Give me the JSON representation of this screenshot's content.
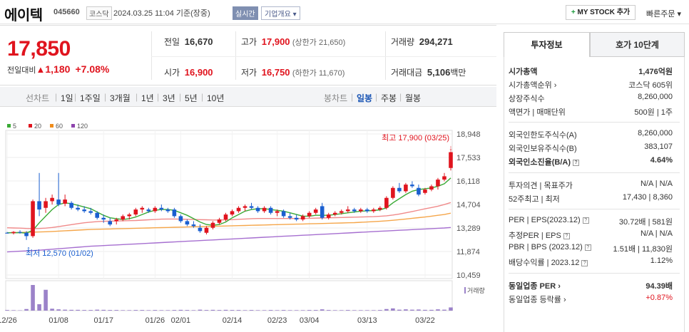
{
  "header": {
    "name": "에이텍",
    "code": "045660",
    "market": "코스닥",
    "date": "2024.03.25 11:04 기준(장중)",
    "realtime": "실시간",
    "company_overview": "기업개요 ▾",
    "mystock": "MY STOCK 추가",
    "mystock_plus": "+",
    "quick_order": "빠른주문 ▾"
  },
  "price": {
    "current": "17,850",
    "change_label": "전일대비",
    "change_arrow": "▲",
    "change_value": "1,180",
    "change_rate": "+7.08%"
  },
  "stats": {
    "prev_label": "전일",
    "prev": "16,670",
    "high_label": "고가",
    "high": "17,900",
    "upper_limit": "(상한가 21,650)",
    "volume_label": "거래량",
    "volume": "294,271",
    "open_label": "시가",
    "open": "16,900",
    "low_label": "저가",
    "low": "16,750",
    "lower_limit": "(하한가 11,670)",
    "amount_label": "거래대금",
    "amount": "5,106",
    "amount_unit": "백만"
  },
  "period_bar": {
    "line_label": "선차트",
    "periods": [
      "1일",
      "1주일",
      "3개월",
      "1년",
      "3년",
      "5년",
      "10년"
    ],
    "candle_label": "봉차트",
    "candles": [
      "일봉",
      "주봉",
      "월봉"
    ],
    "selected": "일봉",
    "separator": "|"
  },
  "chart_data": {
    "type": "candlestick",
    "legend": [
      "5",
      "20",
      "60",
      "120"
    ],
    "legend_colors": [
      "#3aaa35",
      "#e0141e",
      "#f08c1a",
      "#8e44ad"
    ],
    "y_ticks": [
      "18,948",
      "17,533",
      "16,118",
      "14,704",
      "13,289",
      "11,874",
      "10,459"
    ],
    "y_range": [
      10459,
      18948
    ],
    "x_labels": [
      "12/26",
      "01/08",
      "01/17",
      "01/26",
      "02/01",
      "02/14",
      "02/23",
      "03/04",
      "03/13",
      "03/22"
    ],
    "max_label": "최고 17,900 (03/25)",
    "min_label": "최저 12,570 (01/02)",
    "volume_label": "거래량",
    "candles": [
      [
        13000,
        13050,
        12950,
        12990
      ],
      [
        12980,
        13100,
        12900,
        13050
      ],
      [
        13050,
        13150,
        12950,
        13000
      ],
      [
        13000,
        13100,
        12570,
        12800
      ],
      [
        12800,
        15000,
        12700,
        14900
      ],
      [
        14900,
        16600,
        14000,
        14400
      ],
      [
        14500,
        15100,
        14200,
        14900
      ],
      [
        14900,
        15300,
        14700,
        15100
      ],
      [
        15000,
        16600,
        14600,
        14700
      ],
      [
        14750,
        15300,
        14600,
        15000
      ],
      [
        14800,
        14900,
        14400,
        14500
      ],
      [
        14500,
        14700,
        14300,
        14400
      ],
      [
        14400,
        14600,
        14200,
        14300
      ],
      [
        14300,
        14500,
        14100,
        14200
      ],
      [
        14200,
        14300,
        13800,
        13900
      ],
      [
        13900,
        14100,
        13600,
        13800
      ],
      [
        13700,
        13900,
        13400,
        13500
      ],
      [
        13700,
        13900,
        13500,
        13800
      ],
      [
        13800,
        14100,
        13700,
        14000
      ],
      [
        14000,
        14200,
        13800,
        14100
      ],
      [
        14100,
        14500,
        14000,
        14400
      ],
      [
        14400,
        14600,
        14200,
        14500
      ],
      [
        14400,
        14500,
        14200,
        14300
      ],
      [
        14300,
        14600,
        14200,
        14500
      ],
      [
        14500,
        14700,
        14300,
        14400
      ],
      [
        14400,
        14500,
        14200,
        14300
      ],
      [
        14400,
        14500,
        13900,
        14000
      ],
      [
        14000,
        14100,
        13600,
        13700
      ],
      [
        13700,
        13800,
        13400,
        13500
      ],
      [
        13500,
        13700,
        13300,
        13400
      ],
      [
        13300,
        13500,
        13000,
        13100
      ],
      [
        13000,
        13400,
        12900,
        13300
      ],
      [
        13300,
        13700,
        13200,
        13600
      ],
      [
        13600,
        13900,
        13500,
        13800
      ],
      [
        13800,
        14200,
        13700,
        14100
      ],
      [
        14100,
        14400,
        14000,
        14300
      ],
      [
        14300,
        14600,
        14200,
        14500
      ],
      [
        14500,
        14700,
        14300,
        14600
      ],
      [
        14600,
        14800,
        14400,
        14500
      ],
      [
        14500,
        14600,
        14200,
        14300
      ],
      [
        14300,
        14600,
        14200,
        14500
      ],
      [
        14500,
        14600,
        14100,
        14200
      ],
      [
        14200,
        14400,
        14000,
        14300
      ],
      [
        14300,
        14400,
        13900,
        14000
      ],
      [
        14000,
        14200,
        13800,
        13900
      ],
      [
        13900,
        14100,
        13700,
        13800
      ],
      [
        13800,
        14100,
        13700,
        14000
      ],
      [
        14000,
        14300,
        13900,
        14200
      ],
      [
        14200,
        14500,
        14100,
        14400
      ],
      [
        14600,
        14800,
        13800,
        13900
      ],
      [
        13900,
        14200,
        13800,
        14100
      ],
      [
        14100,
        14300,
        14000,
        14200
      ],
      [
        14200,
        14400,
        14100,
        14300
      ],
      [
        14300,
        14600,
        14200,
        14400
      ],
      [
        14400,
        14500,
        14200,
        14300
      ],
      [
        14300,
        14500,
        14200,
        14400
      ],
      [
        14400,
        14500,
        14200,
        14300
      ],
      [
        14300,
        14500,
        14200,
        14400
      ],
      [
        14400,
        14600,
        14300,
        14500
      ],
      [
        14500,
        15200,
        14400,
        15100
      ],
      [
        15100,
        15800,
        15000,
        15700
      ],
      [
        15700,
        16000,
        15400,
        15500
      ],
      [
        15500,
        16000,
        15400,
        15900
      ],
      [
        15900,
        16100,
        15700,
        15800
      ],
      [
        15700,
        15900,
        15200,
        15300
      ],
      [
        15400,
        15700,
        15300,
        15600
      ],
      [
        15600,
        15900,
        15500,
        15800
      ],
      [
        15800,
        16300,
        15600,
        16200
      ],
      [
        16200,
        16600,
        16100,
        16400
      ],
      [
        16900,
        17900,
        16750,
        17850
      ]
    ],
    "ma5": [
      13000,
      13000,
      13010,
      12980,
      13150,
      13600,
      14000,
      14400,
      14700,
      14800,
      14750,
      14650,
      14550,
      14450,
      14250,
      14050,
      13900,
      13850,
      13800,
      13850,
      13950,
      14100,
      14250,
      14350,
      14400,
      14400,
      14350,
      14200,
      14050,
      13850,
      13650,
      13500,
      13450,
      13500,
      13650,
      13900,
      14100,
      14300,
      14400,
      14450,
      14450,
      14400,
      14350,
      14300,
      14200,
      14100,
      14000,
      14000,
      14050,
      14050,
      14050,
      14100,
      14150,
      14200,
      14250,
      14300,
      14320,
      14340,
      14380,
      14500,
      14800,
      15050,
      15300,
      15500,
      15600,
      15650,
      15700,
      15800,
      15950,
      16300
    ],
    "ma20": [
      13300,
      13290,
      13280,
      13260,
      13250,
      13260,
      13280,
      13320,
      13370,
      13430,
      13490,
      13550,
      13600,
      13640,
      13670,
      13690,
      13700,
      13710,
      13720,
      13730,
      13740,
      13760,
      13780,
      13800,
      13820,
      13830,
      13830,
      13820,
      13810,
      13800,
      13790,
      13780,
      13770,
      13770,
      13780,
      13790,
      13810,
      13830,
      13850,
      13860,
      13860,
      13860,
      13860,
      13860,
      13860,
      13860,
      13860,
      13870,
      13880,
      13890,
      13900,
      13910,
      13920,
      13930,
      13940,
      13950,
      13960,
      13970,
      13990,
      14020,
      14070,
      14130,
      14200,
      14280,
      14360,
      14440,
      14520,
      14600,
      14700,
      14820
    ],
    "ma60": [
      13000,
      13010,
      13020,
      13030,
      13040,
      13050,
      13060,
      13080,
      13100,
      13120,
      13140,
      13160,
      13180,
      13200,
      13210,
      13220,
      13230,
      13240,
      13250,
      13260,
      13270,
      13280,
      13290,
      13300,
      13310,
      13320,
      13330,
      13340,
      13350,
      13360,
      13370,
      13380,
      13390,
      13400,
      13410,
      13420,
      13430,
      13440,
      13450,
      13460,
      13470,
      13480,
      13490,
      13500,
      13510,
      13520,
      13530,
      13540,
      13550,
      13560,
      13570,
      13580,
      13590,
      13600,
      13610,
      13630,
      13650,
      13670,
      13690,
      13720,
      13750,
      13790,
      13830,
      13870,
      13910,
      13950,
      14000,
      14050,
      14100,
      14180
    ],
    "ma120": [
      11850,
      11870,
      11890,
      11910,
      11930,
      11950,
      11980,
      12010,
      12040,
      12070,
      12100,
      12130,
      12160,
      12190,
      12210,
      12230,
      12250,
      12270,
      12290,
      12310,
      12330,
      12350,
      12370,
      12390,
      12410,
      12430,
      12450,
      12470,
      12490,
      12510,
      12530,
      12550,
      12570,
      12590,
      12610,
      12630,
      12650,
      12670,
      12690,
      12710,
      12730,
      12750,
      12770,
      12790,
      12810,
      12830,
      12850,
      12870,
      12890,
      12910,
      12930,
      12950,
      12970,
      12990,
      13010,
      13030,
      13050,
      13070,
      13090,
      13110,
      13130,
      13150,
      13170,
      13190,
      13210,
      13230,
      13250,
      13270,
      13290,
      13320
    ],
    "volume": [
      4,
      3,
      2,
      10,
      160,
      40,
      130,
      12,
      8,
      6,
      5,
      5,
      4,
      4,
      6,
      5,
      4,
      4,
      3,
      3,
      4,
      4,
      3,
      4,
      3,
      3,
      4,
      5,
      4,
      3,
      6,
      4,
      5,
      4,
      5,
      4,
      4,
      3,
      4,
      3,
      3,
      4,
      3,
      4,
      3,
      3,
      3,
      4,
      4,
      8,
      4,
      3,
      3,
      4,
      3,
      3,
      3,
      3,
      4,
      10,
      14,
      6,
      8,
      6,
      7,
      5,
      5,
      8,
      6,
      20
    ]
  },
  "right_panel": {
    "tab_active": "투자정보",
    "tab_other": "호가 10단계",
    "rows": [
      {
        "k": "시가총액",
        "v": "1,476억원",
        "bold": true
      },
      {
        "k": "시가총액순위 ›",
        "v": "코스닥 605위"
      },
      {
        "k": "상장주식수",
        "v": "8,260,000"
      },
      {
        "k": "액면가 | 매매단위",
        "v": "500원 | 1주"
      },
      {
        "k": "외국인한도주식수(A)",
        "v": "8,260,000"
      },
      {
        "k": "외국인보유주식수(B)",
        "v": "383,107"
      },
      {
        "k": "외국인소진율(B/A)",
        "v": "4.64%",
        "bold": true,
        "icon": true
      },
      {
        "k": "투자의견 | 목표주가",
        "v": "N/A | N/A"
      },
      {
        "k": "52주최고 | 최저",
        "v": "17,430 | 8,360"
      },
      {
        "k": "PER | EPS(2023.12)",
        "v": "30.72배 | 581원",
        "icon": true
      },
      {
        "k": "추정PER | EPS",
        "v": "N/A | N/A",
        "icon": true
      },
      {
        "k": "PBR | BPS (2023.12)",
        "v": "1.51배 | 11,830원",
        "icon": true
      },
      {
        "k": "배당수익률 | 2023.12",
        "v": "1.12%",
        "icon": true
      },
      {
        "k": "동일업종 PER ›",
        "v": "94.39배",
        "bold": true
      },
      {
        "k": "동일업종 등락률 ›",
        "v": "+0.87%",
        "red": true
      }
    ],
    "help_icon": "?"
  }
}
